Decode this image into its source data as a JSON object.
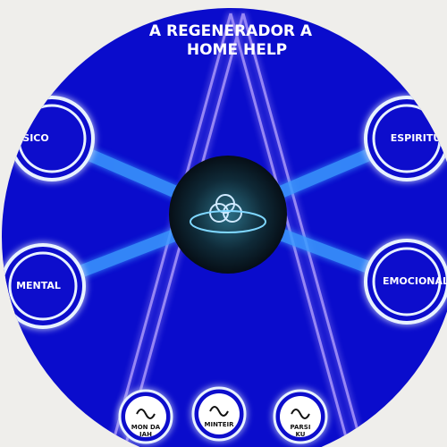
{
  "header": {
    "title_lines": [
      "A REGENERADOR A",
      "HOME HELP"
    ]
  },
  "nodes": [
    {
      "label": "SICO"
    },
    {
      "label": "ESPIRITU"
    },
    {
      "label": "MENTAL"
    },
    {
      "label": "EMOCIONAL"
    }
  ],
  "bottom_buttons": [
    {
      "lines": [
        "MON DA",
        "IAH"
      ]
    },
    {
      "lines": [
        "MINTEIR"
      ]
    },
    {
      "lines": [
        "PARSI",
        "KU"
      ]
    }
  ]
}
